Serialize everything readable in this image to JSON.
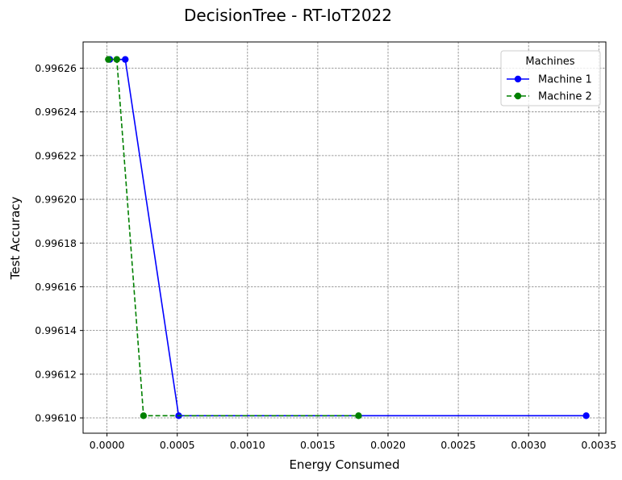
{
  "chart_data": {
    "type": "line",
    "title": "DecisionTree - RT-IoT2022",
    "xlabel": "Energy Consumed",
    "ylabel": "Test Accuracy",
    "xlim": [
      -0.00017,
      0.00355
    ],
    "ylim": [
      0.996093,
      0.996272
    ],
    "x_ticks": [
      0.0,
      0.0005,
      0.001,
      0.0015,
      0.002,
      0.0025,
      0.003,
      0.0035
    ],
    "x_tick_labels": [
      "0.0000",
      "0.0005",
      "0.0010",
      "0.0015",
      "0.0020",
      "0.0025",
      "0.0030",
      "0.0035"
    ],
    "y_ticks": [
      0.9961,
      0.99612,
      0.99614,
      0.99616,
      0.99618,
      0.9962,
      0.99622,
      0.99624,
      0.99626
    ],
    "y_tick_labels": [
      "0.99610",
      "0.99612",
      "0.99614",
      "0.99616",
      "0.99618",
      "0.99620",
      "0.99622",
      "0.99624",
      "0.99626"
    ],
    "grid": true,
    "legend": {
      "title": "Machines",
      "placement": "top-right"
    },
    "series": [
      {
        "name": "Machine 1",
        "color": "#0000ff",
        "linestyle": "solid",
        "marker": "circle",
        "x": [
          2e-05,
          0.00013,
          0.00051,
          0.00341
        ],
        "y": [
          0.996264,
          0.996264,
          0.996101,
          0.996101
        ]
      },
      {
        "name": "Machine 2",
        "color": "#008000",
        "linestyle": "dashed",
        "marker": "circle",
        "x": [
          1e-05,
          7e-05,
          0.00026,
          0.00179
        ],
        "y": [
          0.996264,
          0.996264,
          0.996101,
          0.996101
        ]
      }
    ]
  }
}
